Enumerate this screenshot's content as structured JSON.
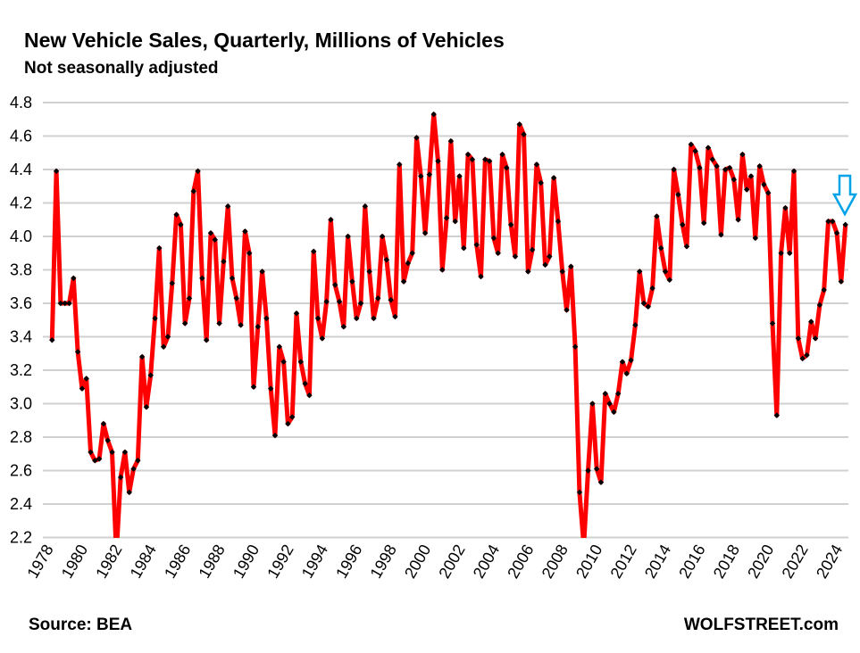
{
  "chart_data": {
    "type": "line",
    "title": "New Vehicle Sales, Quarterly, Millions of Vehicles",
    "subtitle": "Not seasonally adjusted",
    "source": "Source: BEA",
    "brand": "WOLFSTREET.com",
    "xlabel": "",
    "ylabel": "",
    "ylim": [
      2.2,
      4.8
    ],
    "y_ticks": [
      "2.2",
      "2.4",
      "2.6",
      "2.8",
      "3.0",
      "3.2",
      "3.4",
      "3.6",
      "3.8",
      "4.0",
      "4.2",
      "4.4",
      "4.6",
      "4.8"
    ],
    "x_ticks": [
      "1978",
      "1980",
      "1982",
      "1984",
      "1986",
      "1988",
      "1990",
      "1992",
      "1994",
      "1996",
      "1998",
      "2000",
      "2002",
      "2004",
      "2006",
      "2008",
      "2010",
      "2012",
      "2014",
      "2016",
      "2018",
      "2020",
      "2022",
      "2024"
    ],
    "x_start": "1978 Q1",
    "frequency": "quarterly",
    "grid": true,
    "legend": "none",
    "annotation": "down-arrow at latest point",
    "colors": {
      "line": "#ff0000",
      "marker": "#000000",
      "arrow": "#00a2e8",
      "grid": "#d0d0d0"
    },
    "series": [
      {
        "name": "New Vehicle Sales",
        "values": [
          3.38,
          4.39,
          3.6,
          3.6,
          3.6,
          3.75,
          3.31,
          3.09,
          3.15,
          2.71,
          2.66,
          2.67,
          2.88,
          2.78,
          2.71,
          2.1,
          2.56,
          2.71,
          2.47,
          2.61,
          2.66,
          3.28,
          2.98,
          3.17,
          3.51,
          3.93,
          3.34,
          3.4,
          3.72,
          4.13,
          4.07,
          3.48,
          3.63,
          4.27,
          4.39,
          3.75,
          3.38,
          4.02,
          3.98,
          3.48,
          3.85,
          4.18,
          3.75,
          3.63,
          3.47,
          4.03,
          3.9,
          3.1,
          3.46,
          3.79,
          3.51,
          3.09,
          2.81,
          3.34,
          3.25,
          2.88,
          2.92,
          3.54,
          3.25,
          3.12,
          3.05,
          3.91,
          3.51,
          3.39,
          3.61,
          4.1,
          3.71,
          3.61,
          3.46,
          4.0,
          3.73,
          3.51,
          3.6,
          4.18,
          3.79,
          3.51,
          3.63,
          4.0,
          3.86,
          3.62,
          3.52,
          4.43,
          3.73,
          3.84,
          3.9,
          4.59,
          4.36,
          4.02,
          4.37,
          4.73,
          4.45,
          3.8,
          4.11,
          4.57,
          4.09,
          4.36,
          3.93,
          4.49,
          4.46,
          3.95,
          3.76,
          4.46,
          4.45,
          3.99,
          3.9,
          4.49,
          4.41,
          4.07,
          3.88,
          4.67,
          4.61,
          3.79,
          3.92,
          4.43,
          4.32,
          3.83,
          3.88,
          4.35,
          4.09,
          3.79,
          3.56,
          3.82,
          3.34,
          2.47,
          2.15,
          2.6,
          3.0,
          2.61,
          2.53,
          3.06,
          3.0,
          2.95,
          3.06,
          3.25,
          3.18,
          3.26,
          3.47,
          3.79,
          3.6,
          3.58,
          3.69,
          4.12,
          3.93,
          3.79,
          3.74,
          4.4,
          4.25,
          4.07,
          3.94,
          4.55,
          4.51,
          4.41,
          4.08,
          4.53,
          4.46,
          4.42,
          4.01,
          4.4,
          4.41,
          4.34,
          4.1,
          4.49,
          4.28,
          4.36,
          3.99,
          4.42,
          4.31,
          4.26,
          3.48,
          2.93,
          3.9,
          4.17,
          3.9,
          4.39,
          3.39,
          3.27,
          3.29,
          3.49,
          3.39,
          3.59,
          3.68,
          4.09,
          4.09,
          4.02,
          3.73,
          4.07
        ]
      }
    ]
  }
}
